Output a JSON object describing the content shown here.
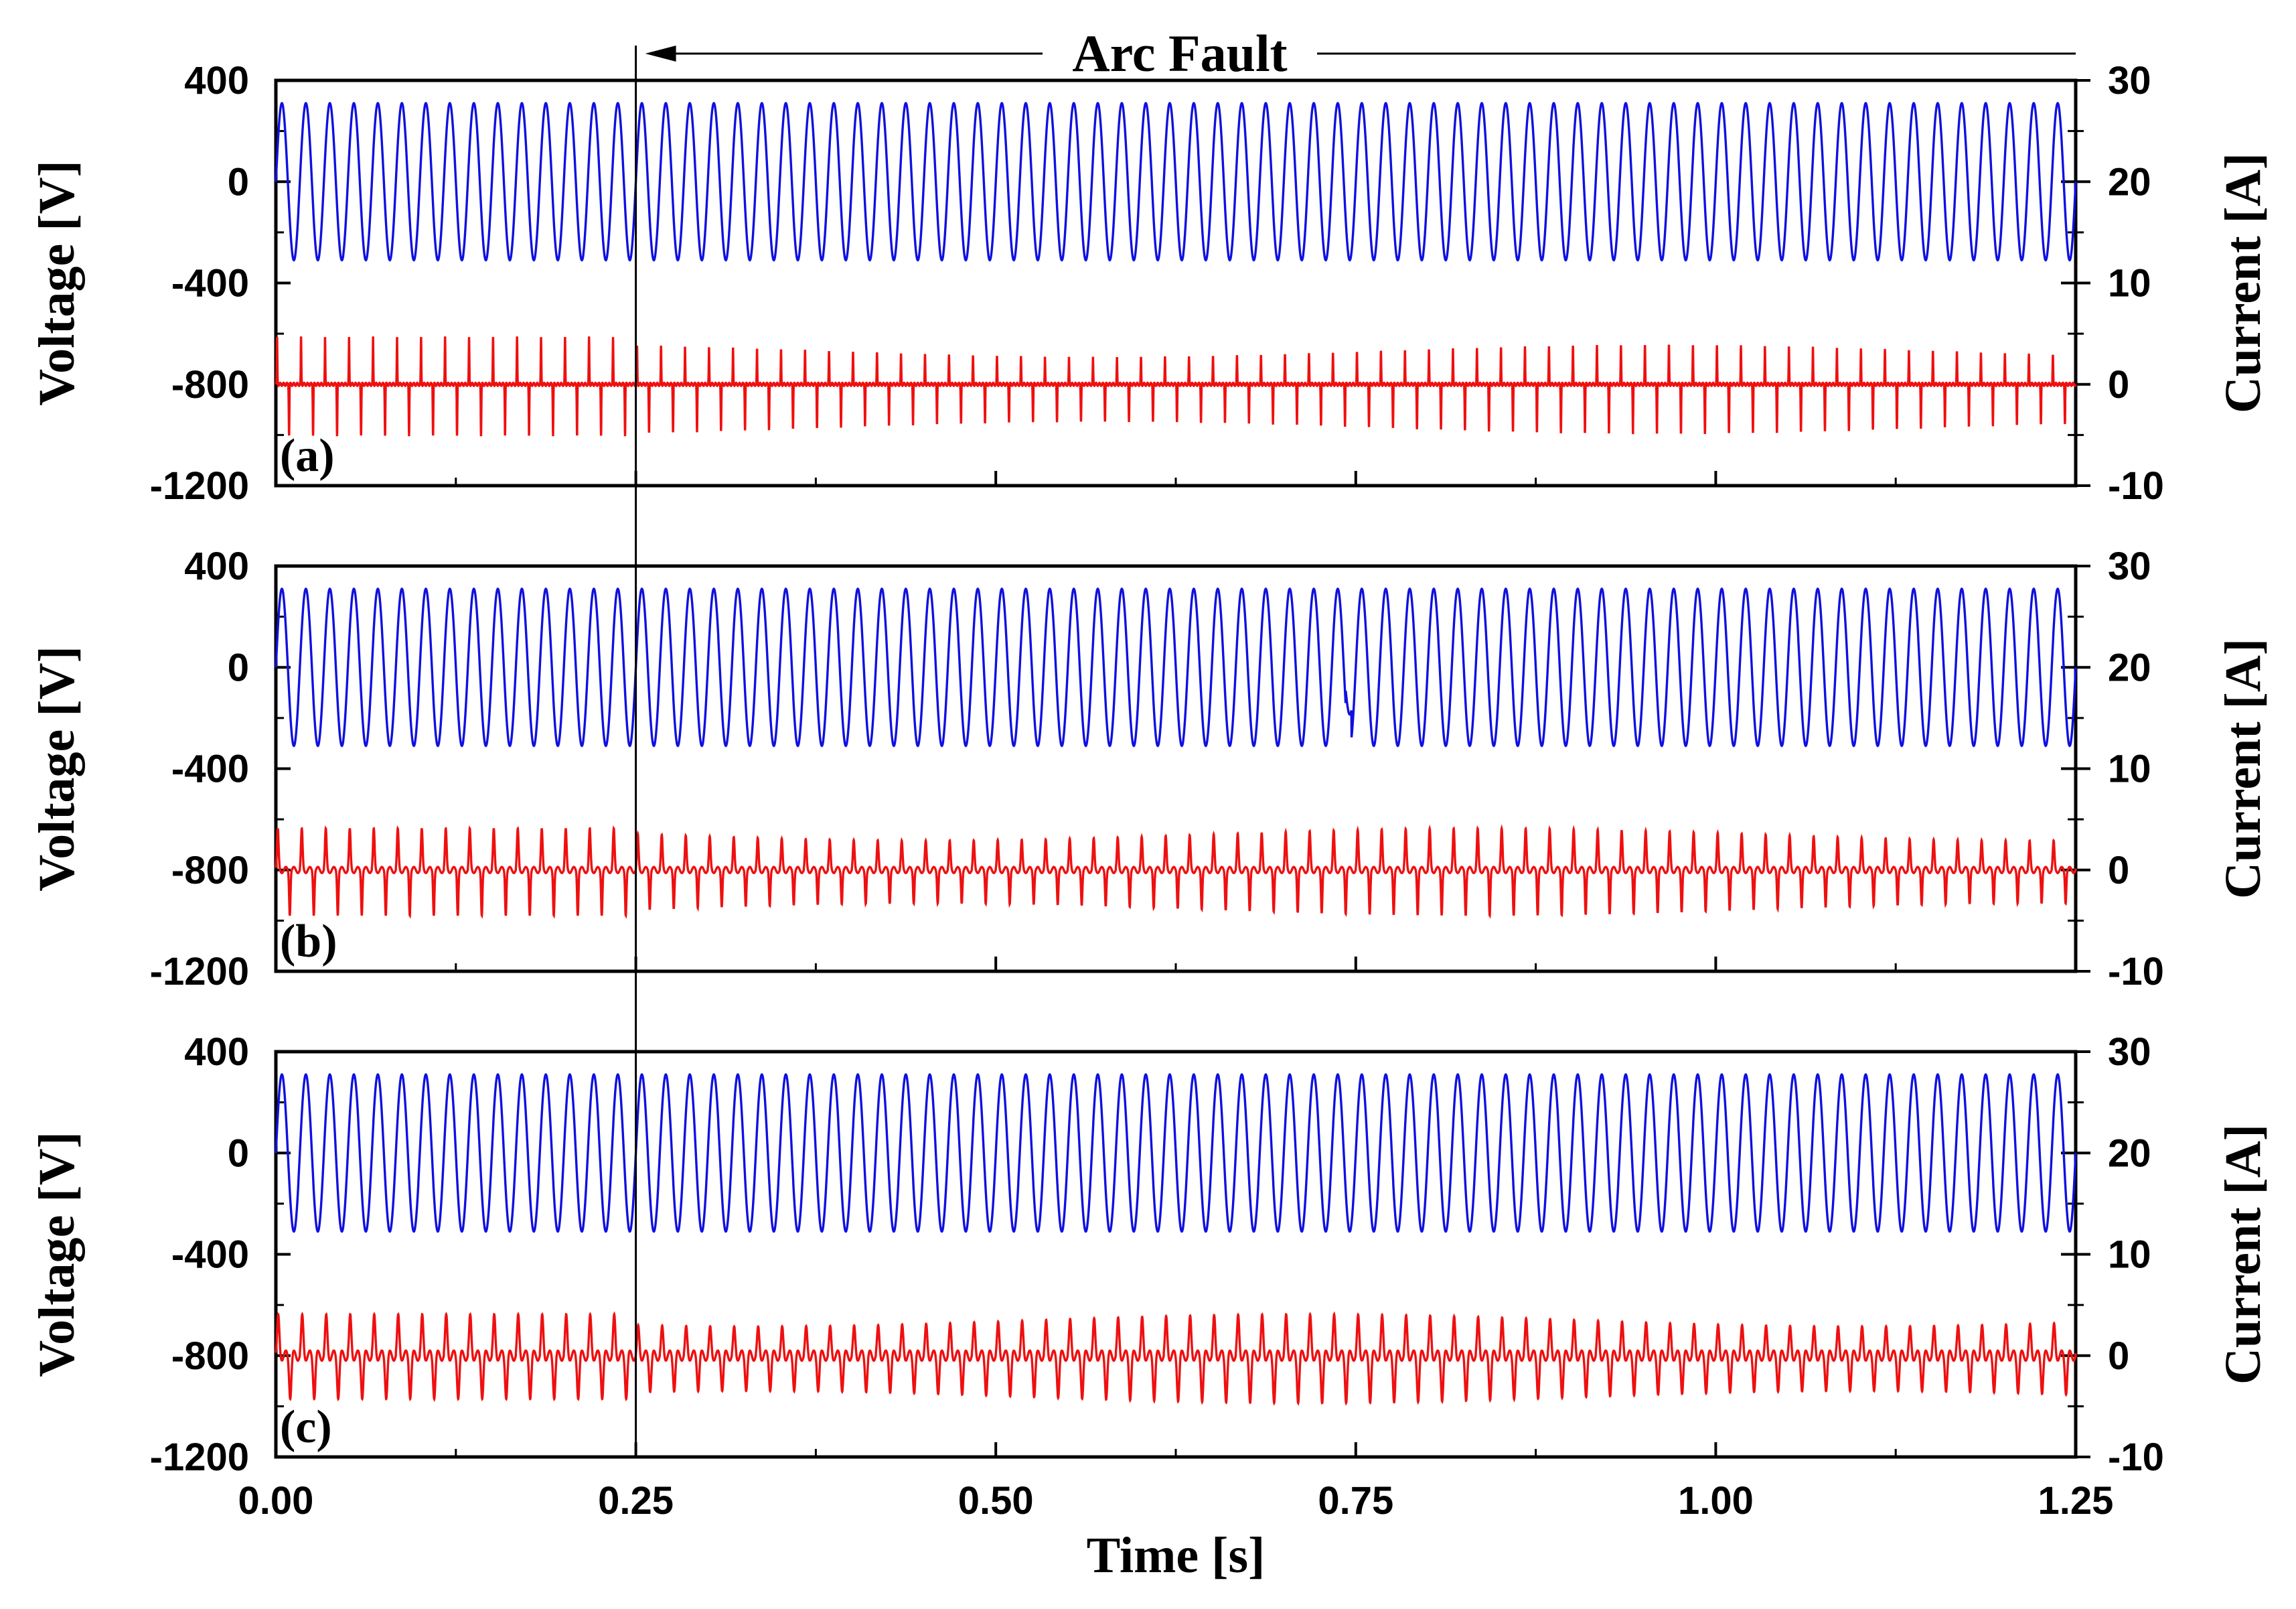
{
  "chart_data": {
    "type": "line",
    "xlabel": "Time [s]",
    "x_ticks": [
      "0.00",
      "0.25",
      "0.50",
      "0.75",
      "1.00",
      "1.25"
    ],
    "xlim": [
      0,
      1.25
    ],
    "left_ylabel": "Voltage [V]",
    "right_ylabel": "Current [A]",
    "left_ylim": [
      -1200,
      400
    ],
    "right_ylim": [
      -10,
      30
    ],
    "left_ticks": [
      "400",
      "0",
      "-400",
      "-800",
      "-1200"
    ],
    "right_ticks": [
      "30",
      "20",
      "10",
      "0",
      "-10"
    ],
    "voltage_color": "#1010e0",
    "current_color": "#ee1010",
    "annotation": {
      "text": "Arc Fault",
      "fault_time": 0.25
    },
    "voltage_waveform": {
      "amplitude": 310,
      "frequency_hz": 60
    },
    "panels": [
      {
        "label": "(a)",
        "current_peak": 4.6,
        "current_trough": -5.0,
        "fault_current_peak": 3.2,
        "fault_current_trough": -4.2
      },
      {
        "label": "(b)",
        "current_peak": 3.8,
        "current_trough": -4.2,
        "fault_current_peak": 3.2,
        "fault_current_trough": -3.6
      },
      {
        "label": "(c)",
        "current_peak": 3.6,
        "current_trough": -3.8,
        "fault_current_peak": 3.0,
        "fault_current_trough": -3.6
      }
    ]
  }
}
